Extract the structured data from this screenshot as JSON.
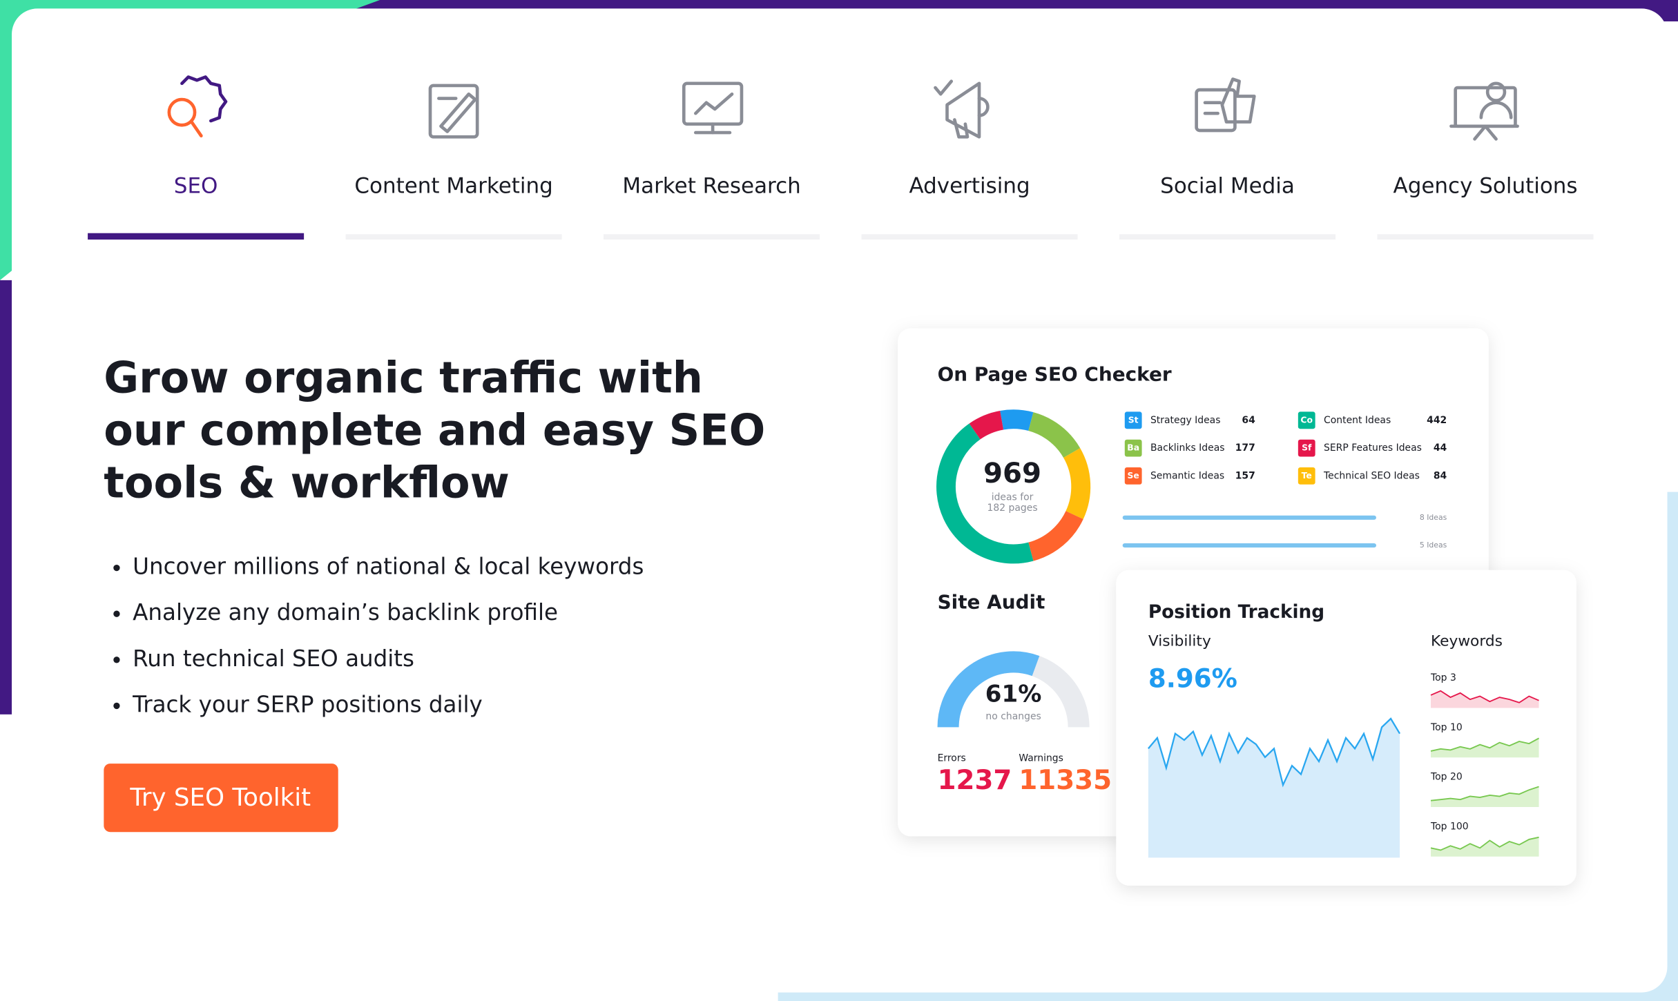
{
  "tabs": [
    {
      "label": "SEO"
    },
    {
      "label": "Content Marketing"
    },
    {
      "label": "Market Research"
    },
    {
      "label": "Advertising"
    },
    {
      "label": "Social Media"
    },
    {
      "label": "Agency Solutions"
    }
  ],
  "hero": {
    "title_lines": [
      "Grow organic traffic with",
      "our complete and easy SEO",
      "tools & workflow"
    ],
    "bullets": [
      "Uncover millions of national & local keywords",
      "Analyze any domain’s backlink profile",
      "Run technical SEO audits",
      "Track your SERP positions daily"
    ],
    "button": "Try SEO Toolkit"
  },
  "on_page": {
    "title": "On Page SEO Checker",
    "total": "969",
    "total_caption": [
      "ideas for",
      "182 pages"
    ],
    "ideas": [
      {
        "badge": "St",
        "label": "Strategy Ideas",
        "count": "64",
        "color": "#1e9bf0"
      },
      {
        "badge": "Ba",
        "label": "Backlinks Ideas",
        "count": "177",
        "color": "#8bc34a"
      },
      {
        "badge": "Se",
        "label": "Semantic Ideas",
        "count": "157",
        "color": "#ff642d"
      },
      {
        "badge": "Co",
        "label": "Content Ideas",
        "count": "442",
        "color": "#00b894"
      },
      {
        "badge": "Sf",
        "label": "SERP Features Ideas",
        "count": "44",
        "color": "#e5174b"
      },
      {
        "badge": "Te",
        "label": "Technical SEO Ideas",
        "count": "84",
        "color": "#ffbe0b"
      }
    ],
    "bars": [
      "8 Ideas",
      "5 Ideas"
    ]
  },
  "site_audit": {
    "title": "Site Audit",
    "percent": "61%",
    "caption": "no changes",
    "errors_label": "Errors",
    "errors": "1237",
    "warnings_label": "Warnings",
    "warnings": "11335"
  },
  "position_tracking": {
    "title": "Position Tracking",
    "visibility_label": "Visibility",
    "visibility": "8.96%",
    "keywords_label": "Keywords",
    "keywords": [
      "Top 3",
      "Top 10",
      "Top 20",
      "Top 100"
    ]
  }
}
